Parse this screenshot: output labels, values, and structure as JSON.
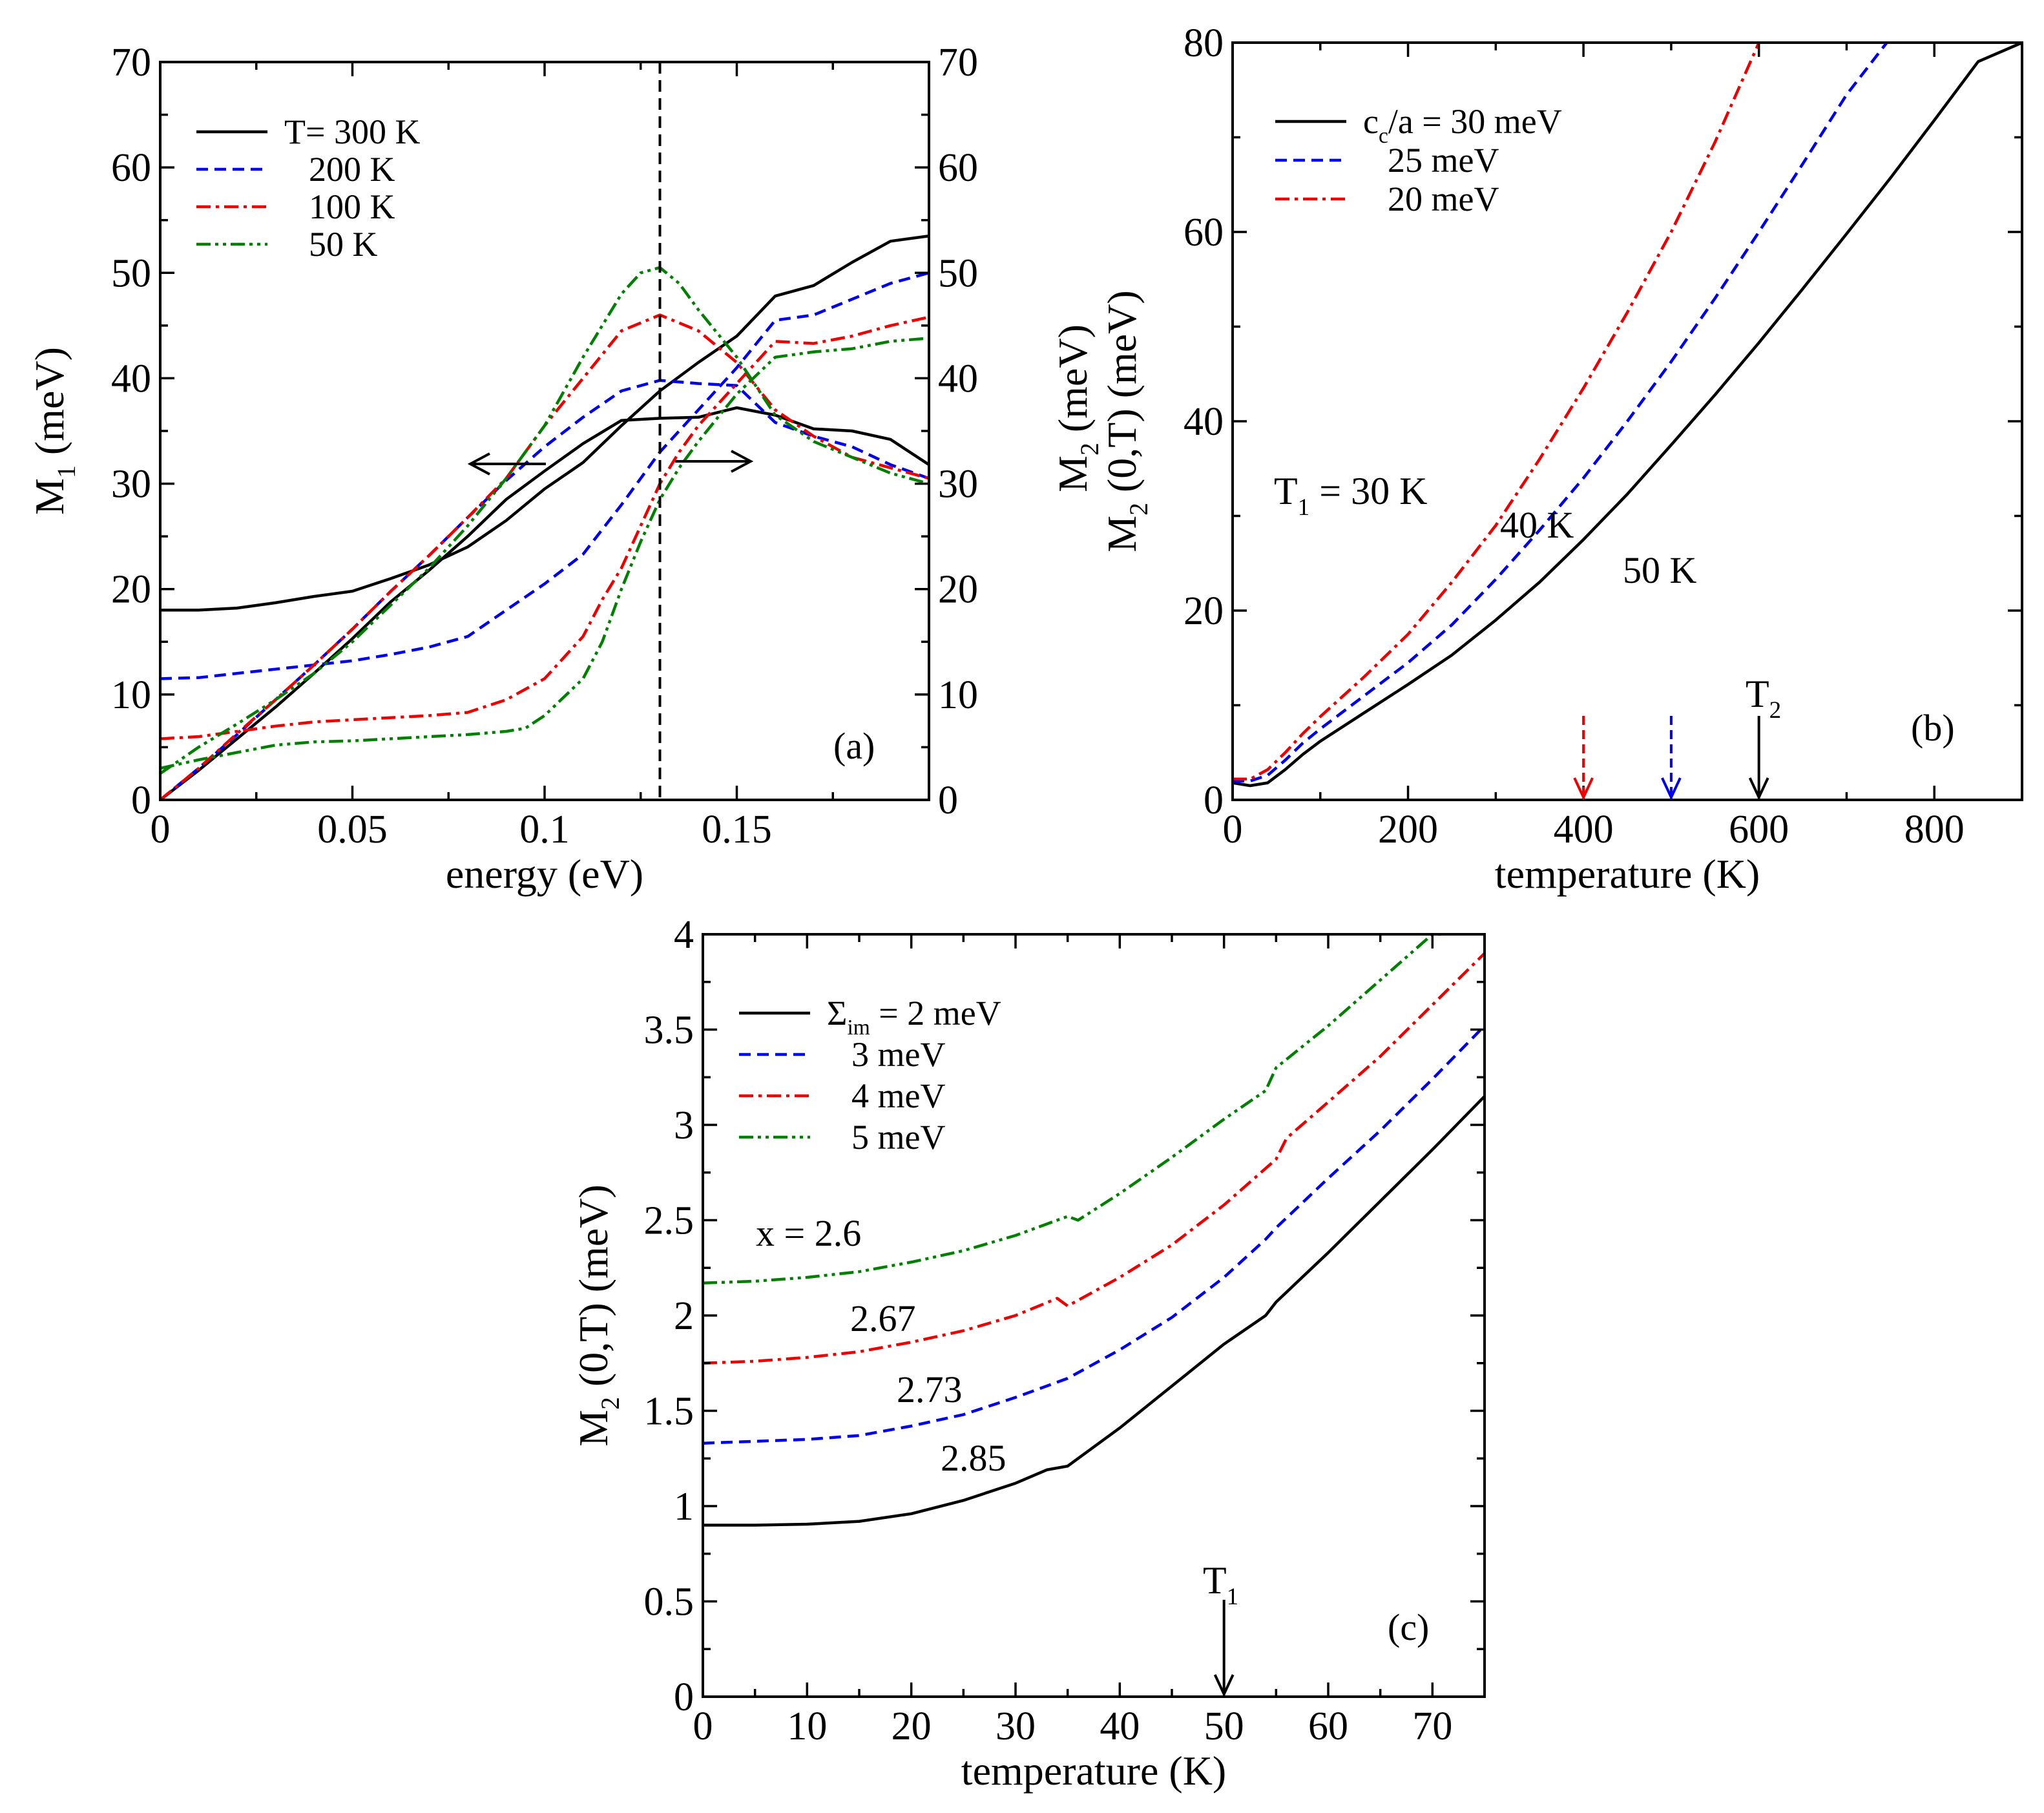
{
  "chart_data": [
    {
      "id": "a",
      "type": "line",
      "panel_label": "(a)",
      "xlabel": "energy (eV)",
      "ylabel_main": "M",
      "ylabel_sub": "1",
      "ylabel_unit": "(meV)",
      "xlim": [
        0,
        0.2
      ],
      "ylim": [
        0,
        70
      ],
      "x_ticks": [
        0,
        0.05,
        0.1,
        0.15
      ],
      "x_tick_labels": [
        "0",
        "0.05",
        "0.1",
        "0.15"
      ],
      "y_ticks": [
        0,
        10,
        20,
        30,
        40,
        50,
        60,
        70
      ],
      "y_tick_labels": [
        "0",
        "10",
        "20",
        "30",
        "40",
        "50",
        "60",
        "70"
      ],
      "right_y_tick_labels": [
        "0",
        "10",
        "20",
        "30",
        "40",
        "50",
        "60",
        "70"
      ],
      "vline_x": 0.13,
      "legend": [
        "T= 300 K",
        "200 K",
        "100 K",
        "50 K"
      ],
      "series": [
        {
          "name": "T= 300 K M1",
          "color": "#000000",
          "dash": "solid",
          "x": [
            0,
            0.01,
            0.02,
            0.03,
            0.04,
            0.05,
            0.06,
            0.07,
            0.08,
            0.09,
            0.1,
            0.11,
            0.12,
            0.13,
            0.14,
            0.15,
            0.16,
            0.17,
            0.18,
            0.19,
            0.2
          ],
          "y": [
            18,
            18,
            18.2,
            18.7,
            19.3,
            19.8,
            21,
            22.3,
            24,
            26.5,
            29.5,
            32,
            35.5,
            38.8,
            41.5,
            44,
            47.8,
            48.8,
            51,
            53,
            53.5
          ]
        },
        {
          "name": "T= 300 K M2",
          "color": "#000000",
          "dash": "solid",
          "x": [
            0,
            0.01,
            0.02,
            0.03,
            0.04,
            0.05,
            0.06,
            0.07,
            0.08,
            0.09,
            0.1,
            0.11,
            0.12,
            0.13,
            0.14,
            0.15,
            0.16,
            0.17,
            0.18,
            0.19,
            0.2
          ],
          "y": [
            0,
            2.8,
            5.8,
            8.8,
            12,
            15.3,
            18.8,
            21.8,
            25,
            28.5,
            31.2,
            33.8,
            36,
            36.2,
            36.3,
            37.2,
            36.5,
            35.2,
            35,
            34.2,
            31.8
          ]
        },
        {
          "name": "200 K M1",
          "color": "#0000ee",
          "dash": "18,10",
          "x": [
            0,
            0.01,
            0.02,
            0.03,
            0.04,
            0.05,
            0.06,
            0.07,
            0.08,
            0.09,
            0.1,
            0.11,
            0.12,
            0.13,
            0.14,
            0.15,
            0.16,
            0.17,
            0.18,
            0.19,
            0.2
          ],
          "y": [
            11.5,
            11.6,
            12,
            12.4,
            12.8,
            13.2,
            13.8,
            14.5,
            15.5,
            18,
            20.5,
            23.3,
            28,
            33,
            37,
            41,
            45.5,
            46,
            47.5,
            49,
            50
          ]
        },
        {
          "name": "200 K M2",
          "color": "#0000ee",
          "dash": "18,10",
          "x": [
            0,
            0.01,
            0.02,
            0.03,
            0.04,
            0.05,
            0.06,
            0.07,
            0.08,
            0.09,
            0.1,
            0.11,
            0.12,
            0.13,
            0.14,
            0.15,
            0.16,
            0.17,
            0.18,
            0.19,
            0.2
          ],
          "y": [
            0,
            3,
            6.2,
            9.5,
            12.8,
            16.2,
            19.8,
            23.2,
            26.8,
            30.3,
            33.5,
            36.3,
            38.8,
            39.8,
            39.5,
            39.3,
            35.8,
            34.5,
            33.5,
            31.8,
            30.5
          ]
        },
        {
          "name": "100 K M1",
          "color": "#ee0000",
          "dash": "22,8,5,8",
          "x": [
            0,
            0.01,
            0.02,
            0.03,
            0.04,
            0.05,
            0.06,
            0.07,
            0.08,
            0.09,
            0.1,
            0.11,
            0.115,
            0.12,
            0.125,
            0.13,
            0.135,
            0.14,
            0.15,
            0.16,
            0.17,
            0.18,
            0.19,
            0.2
          ],
          "y": [
            5.8,
            6,
            6.5,
            7,
            7.4,
            7.6,
            7.8,
            8,
            8.3,
            9.5,
            11.5,
            15.5,
            19,
            22,
            26,
            30,
            33,
            35.5,
            39.5,
            43.5,
            43.3,
            44,
            45,
            45.8
          ]
        },
        {
          "name": "100 K M2",
          "color": "#ee0000",
          "dash": "22,8,5,8",
          "x": [
            0,
            0.01,
            0.02,
            0.03,
            0.04,
            0.05,
            0.06,
            0.07,
            0.08,
            0.09,
            0.1,
            0.11,
            0.12,
            0.13,
            0.14,
            0.15,
            0.16,
            0.17,
            0.18,
            0.19,
            0.2
          ],
          "y": [
            0,
            3,
            6.3,
            9.5,
            12.8,
            16.2,
            19.8,
            23.2,
            26.8,
            30.5,
            35.5,
            40,
            44.5,
            46,
            44.5,
            41.5,
            37,
            34.5,
            32.5,
            31.5,
            30.5
          ]
        },
        {
          "name": "50 K M1",
          "color": "#008000",
          "dash": "22,7,5,7,5,7",
          "x": [
            0,
            0.01,
            0.02,
            0.03,
            0.04,
            0.05,
            0.06,
            0.07,
            0.08,
            0.09,
            0.095,
            0.1,
            0.11,
            0.115,
            0.12,
            0.125,
            0.13,
            0.135,
            0.14,
            0.15,
            0.16,
            0.17,
            0.18,
            0.19,
            0.2
          ],
          "y": [
            3,
            3.8,
            4.5,
            5.2,
            5.5,
            5.6,
            5.8,
            6,
            6.2,
            6.5,
            6.8,
            8,
            11.5,
            15,
            20,
            24.5,
            28.5,
            31.5,
            34,
            38.5,
            42,
            42.5,
            42.8,
            43.5,
            43.8
          ]
        },
        {
          "name": "50 K M2",
          "color": "#008000",
          "dash": "22,7,5,7,5,7",
          "x": [
            0,
            0.01,
            0.02,
            0.03,
            0.04,
            0.05,
            0.06,
            0.07,
            0.08,
            0.09,
            0.1,
            0.11,
            0.12,
            0.125,
            0.13,
            0.135,
            0.14,
            0.15,
            0.16,
            0.17,
            0.18,
            0.19,
            0.2
          ],
          "y": [
            2.5,
            5,
            7.2,
            9.5,
            12,
            15,
            18.5,
            22,
            26,
            30.5,
            35.5,
            42,
            48,
            50,
            50.5,
            49,
            46.5,
            42,
            36.5,
            34,
            32.5,
            31,
            30
          ]
        }
      ]
    },
    {
      "id": "b",
      "type": "line",
      "panel_label": "(b)",
      "xlabel": "temperature (K)",
      "ylabel_outer_main": "M",
      "ylabel_outer_sub": "2",
      "ylabel_outer_unit": "(meV)",
      "ylabel_main": "M",
      "ylabel_sub": "2",
      "ylabel_unit": "(0,T)  (meV)",
      "xlim": [
        0,
        900
      ],
      "ylim": [
        0,
        80
      ],
      "x_ticks": [
        0,
        200,
        400,
        600,
        800
      ],
      "x_tick_labels": [
        "0",
        "200",
        "400",
        "600",
        "800"
      ],
      "y_ticks": [
        0,
        20,
        40,
        60,
        80
      ],
      "y_tick_labels": [
        "0",
        "20",
        "40",
        "60",
        "80"
      ],
      "legend": [
        {
          "main": "c",
          "sub": "c",
          "rest": "/a = 30 meV"
        },
        {
          "main": "25 meV",
          "sub": "",
          "rest": ""
        },
        {
          "main": "20 meV",
          "sub": "",
          "rest": ""
        }
      ],
      "annotations": {
        "t1_main": "T",
        "t1_sub": "1",
        "t1_rest": " = 30 K",
        "label_40": "40 K",
        "label_50": "50 K",
        "t2_main": "T",
        "t2_sub": "2"
      },
      "arrows": [
        {
          "x": 400,
          "color": "#ee0000",
          "dashed": true
        },
        {
          "x": 500,
          "color": "#0000ee",
          "dashed": true
        },
        {
          "x": 600,
          "color": "#000000",
          "dashed": false
        }
      ],
      "series": [
        {
          "name": "cc/a = 30 meV",
          "color": "#000000",
          "dash": "solid",
          "x": [
            0,
            20,
            40,
            60,
            80,
            100,
            150,
            200,
            250,
            300,
            350,
            400,
            450,
            500,
            550,
            600,
            650,
            700,
            750,
            800,
            850,
            900
          ],
          "y": [
            1.8,
            1.5,
            1.8,
            3.2,
            4.8,
            6.2,
            9.2,
            12.2,
            15.3,
            19,
            23,
            27.5,
            32.3,
            37.5,
            42.8,
            48.3,
            54,
            59.8,
            65.7,
            71.8,
            78,
            80
          ]
        },
        {
          "name": "25 meV",
          "color": "#0000ee",
          "dash": "18,10",
          "x": [
            0,
            20,
            40,
            60,
            80,
            100,
            150,
            200,
            250,
            300,
            350,
            400,
            450,
            500,
            550,
            600,
            650,
            700,
            750
          ],
          "y": [
            2,
            2,
            2.6,
            4.2,
            6,
            7.5,
            11,
            14.5,
            18.5,
            23.3,
            28.5,
            34,
            40,
            46.3,
            53,
            60,
            67.2,
            74.5,
            80.5
          ]
        },
        {
          "name": "20 meV",
          "color": "#ee0000",
          "dash": "22,8,5,8",
          "x": [
            0,
            20,
            40,
            60,
            80,
            100,
            150,
            200,
            250,
            300,
            350,
            400,
            450,
            500,
            550,
            600
          ],
          "y": [
            2.2,
            2.2,
            3.2,
            5,
            7,
            8.8,
            13,
            17.5,
            23,
            29,
            36,
            43.5,
            51.5,
            60,
            69.5,
            80
          ]
        }
      ]
    },
    {
      "id": "c",
      "type": "line",
      "panel_label": "(c)",
      "xlabel": "temperature (K)",
      "ylabel_main": "M",
      "ylabel_sub": "2",
      "ylabel_unit": "(0,T)  (meV)",
      "xlim": [
        0,
        75
      ],
      "ylim": [
        0,
        4
      ],
      "x_ticks": [
        0,
        10,
        20,
        30,
        40,
        50,
        60,
        70
      ],
      "x_tick_labels": [
        "0",
        "10",
        "20",
        "30",
        "40",
        "50",
        "60",
        "70"
      ],
      "y_ticks": [
        0,
        0.5,
        1,
        1.5,
        2,
        2.5,
        3,
        3.5,
        4
      ],
      "y_tick_labels": [
        "0",
        "0.5",
        "1",
        "1.5",
        "2",
        "2.5",
        "3",
        "3.5",
        "4"
      ],
      "legend": [
        {
          "main": "Σ",
          "sub": "im",
          "rest": " = 2 meV"
        },
        {
          "main": "3 meV",
          "sub": "",
          "rest": ""
        },
        {
          "main": "4 meV",
          "sub": "",
          "rest": ""
        },
        {
          "main": "5 meV",
          "sub": "",
          "rest": ""
        }
      ],
      "annotations": {
        "x_label_1": "x = 2.6",
        "x_label_2": "2.67",
        "x_label_3": "2.73",
        "x_label_4": "2.85",
        "t1_main": "T",
        "t1_sub": "1"
      },
      "arrows": [
        {
          "x": 50,
          "color": "#000000",
          "dashed": false
        }
      ],
      "series": [
        {
          "name": "Σim = 2 meV",
          "color": "#000000",
          "dash": "solid",
          "x": [
            0,
            5,
            10,
            15,
            20,
            25,
            30,
            33,
            35,
            40,
            45,
            50,
            54,
            55,
            60,
            65,
            70,
            75
          ],
          "y": [
            0.9,
            0.9,
            0.905,
            0.92,
            0.96,
            1.03,
            1.12,
            1.19,
            1.21,
            1.41,
            1.63,
            1.85,
            2.0,
            2.07,
            2.33,
            2.6,
            2.87,
            3.15
          ]
        },
        {
          "name": "3 meV",
          "color": "#0000ee",
          "dash": "18,10",
          "x": [
            0,
            5,
            10,
            15,
            20,
            25,
            30,
            35,
            40,
            45,
            50,
            54,
            55,
            60,
            65,
            70,
            75
          ],
          "y": [
            1.33,
            1.34,
            1.35,
            1.37,
            1.42,
            1.48,
            1.57,
            1.67,
            1.82,
            1.99,
            2.2,
            2.4,
            2.46,
            2.72,
            2.97,
            3.24,
            3.52
          ]
        },
        {
          "name": "4 meV",
          "color": "#ee0000",
          "dash": "22,8,5,8",
          "x": [
            0,
            5,
            10,
            15,
            20,
            25,
            30,
            34,
            35,
            40,
            45,
            50,
            55,
            56,
            60,
            65,
            70,
            75
          ],
          "y": [
            1.75,
            1.76,
            1.78,
            1.81,
            1.86,
            1.92,
            2.0,
            2.09,
            2.05,
            2.2,
            2.37,
            2.58,
            2.82,
            2.93,
            3.12,
            3.36,
            3.63,
            3.9
          ]
        },
        {
          "name": "5 meV",
          "color": "#008000",
          "dash": "22,7,5,7,5,7",
          "x": [
            0,
            5,
            10,
            15,
            20,
            25,
            30,
            35,
            36,
            40,
            45,
            50,
            54,
            55,
            60,
            65,
            70,
            71
          ],
          "y": [
            2.17,
            2.18,
            2.2,
            2.23,
            2.28,
            2.34,
            2.42,
            2.52,
            2.5,
            2.64,
            2.83,
            3.03,
            3.18,
            3.3,
            3.52,
            3.76,
            4.0,
            4.0
          ]
        }
      ]
    }
  ]
}
